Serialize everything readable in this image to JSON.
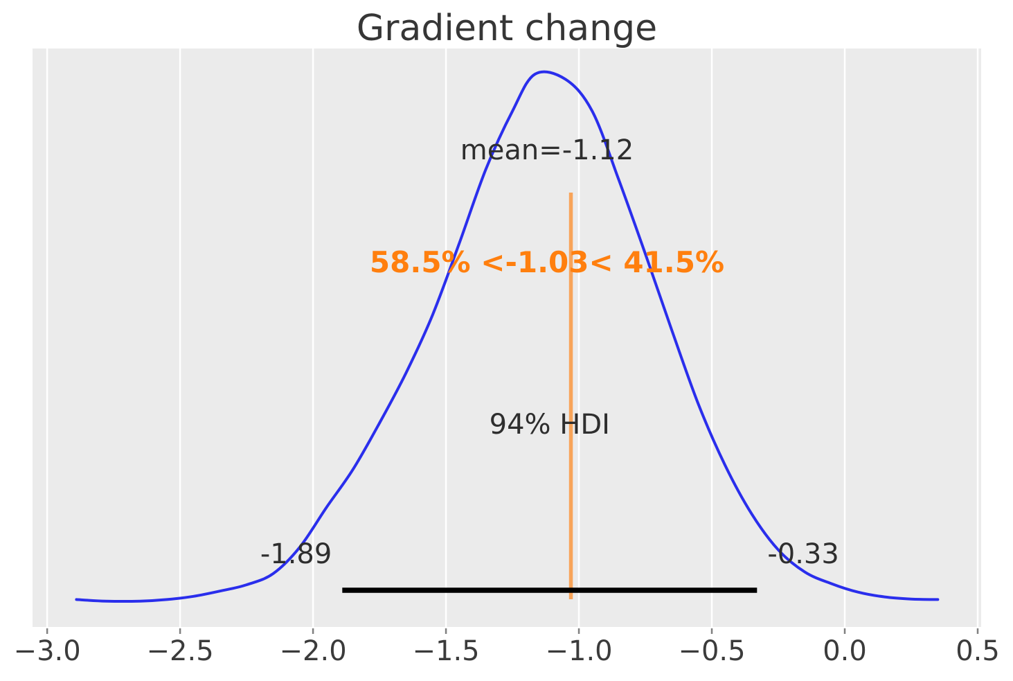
{
  "chart_data": {
    "type": "kde",
    "title": "Gradient change",
    "grid": true,
    "legend": false,
    "x_axis": {
      "tick_labels": [
        "−3.0",
        "−2.5",
        "−2.0",
        "−1.5",
        "−1.0",
        "−0.5",
        "0.0",
        "0.5"
      ],
      "tick_values": [
        -3.0,
        -2.5,
        -2.0,
        -1.5,
        -1.0,
        -0.5,
        0.0,
        0.5
      ],
      "range": [
        -3.055,
        0.513
      ]
    },
    "curve": {
      "x": [
        -2.89,
        -2.78,
        -2.65,
        -2.55,
        -2.45,
        -2.35,
        -2.25,
        -2.15,
        -2.05,
        -1.95,
        -1.85,
        -1.75,
        -1.65,
        -1.55,
        -1.45,
        -1.35,
        -1.25,
        -1.165,
        -1.05,
        -0.95,
        -0.85,
        -0.75,
        -0.65,
        -0.55,
        -0.45,
        -0.35,
        -0.25,
        -0.15,
        -0.05,
        0.05,
        0.15,
        0.25,
        0.35
      ],
      "density": [
        0.006,
        0.003,
        0.003,
        0.006,
        0.012,
        0.022,
        0.034,
        0.055,
        0.105,
        0.18,
        0.252,
        0.34,
        0.435,
        0.545,
        0.68,
        0.82,
        0.93,
        1.0,
        0.99,
        0.93,
        0.8,
        0.66,
        0.515,
        0.375,
        0.26,
        0.168,
        0.1,
        0.058,
        0.036,
        0.02,
        0.011,
        0.007,
        0.006
      ]
    },
    "mean": {
      "value": -1.12,
      "label": "mean=-1.12"
    },
    "hdi": {
      "probability": "94%",
      "label": "94% HDI",
      "lower": -1.89,
      "upper": -0.33,
      "lower_label": "-1.89",
      "upper_label": "-0.33"
    },
    "ref_val": {
      "value": -1.03,
      "label": "58.5% <-1.03< 41.5%",
      "percent_below": "58.5%",
      "percent_above": "41.5%"
    },
    "colors": {
      "curve": "#2a2eec",
      "ref_line": "#ff7f0e",
      "ref_text": "#ff7f0e",
      "hdi_bar": "#000000",
      "plot_background": "#ebebeb",
      "gridline": "#ffffff",
      "figure_background": "#ffffff",
      "annotation_text": "#2e2e2e",
      "tick_text": "#3b3b3b",
      "title_text": "#363636",
      "tick_mark": "#808080"
    }
  }
}
